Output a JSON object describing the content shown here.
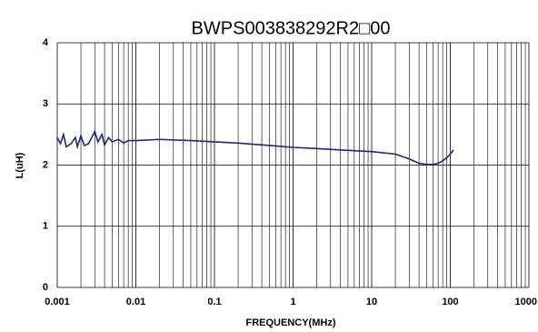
{
  "chart_data": {
    "type": "line",
    "title": "BWPS003838292R2□00",
    "x_label": "FREQUENCY(MHz)",
    "y_label": "L(uH)",
    "x_scale": "log",
    "grid": true,
    "minor_grid": true,
    "xlim": [
      0.001,
      1000
    ],
    "xticks": [
      0.001,
      0.01,
      0.1,
      1,
      10,
      100,
      1000
    ],
    "ylim": [
      0,
      4
    ],
    "yticks": [
      0,
      1,
      2,
      3,
      4
    ],
    "x": [
      0.001,
      0.0011,
      0.0012,
      0.0013,
      0.0015,
      0.0017,
      0.0018,
      0.002,
      0.0022,
      0.0025,
      0.003,
      0.0033,
      0.0037,
      0.004,
      0.0045,
      0.005,
      0.006,
      0.007,
      0.008,
      0.01,
      0.02,
      0.05,
      0.1,
      0.2,
      0.5,
      1,
      2,
      5,
      10,
      20,
      30,
      40,
      50,
      60,
      70,
      80,
      90,
      100,
      110
    ],
    "series": [
      {
        "name": "L",
        "color": "#1f2a6b",
        "values": [
          2.45,
          2.35,
          2.5,
          2.3,
          2.35,
          2.45,
          2.3,
          2.48,
          2.32,
          2.35,
          2.55,
          2.38,
          2.5,
          2.33,
          2.45,
          2.38,
          2.42,
          2.36,
          2.4,
          2.4,
          2.42,
          2.4,
          2.38,
          2.36,
          2.32,
          2.29,
          2.27,
          2.24,
          2.22,
          2.18,
          2.1,
          2.03,
          2.01,
          2.01,
          2.03,
          2.07,
          2.12,
          2.18,
          2.25
        ]
      }
    ]
  }
}
